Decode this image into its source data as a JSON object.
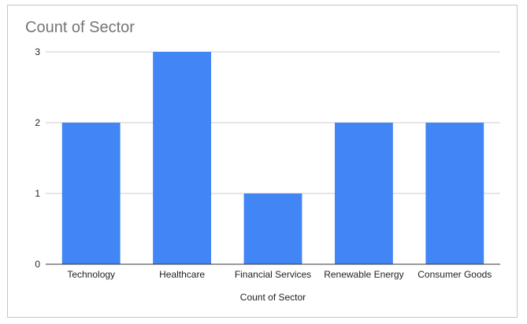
{
  "chart_data": {
    "type": "bar",
    "title": "Count of Sector",
    "xlabel": "Count of Sector",
    "ylabel": "",
    "categories": [
      "Technology",
      "Healthcare",
      "Financial Services",
      "Renewable Energy",
      "Consumer Goods"
    ],
    "values": [
      2,
      3,
      1,
      2,
      2
    ],
    "ylim": [
      0,
      3
    ],
    "yticks": [
      "0",
      "1",
      "2",
      "3"
    ],
    "grid": true,
    "legend": "none",
    "bar_color": "#4285f4"
  }
}
